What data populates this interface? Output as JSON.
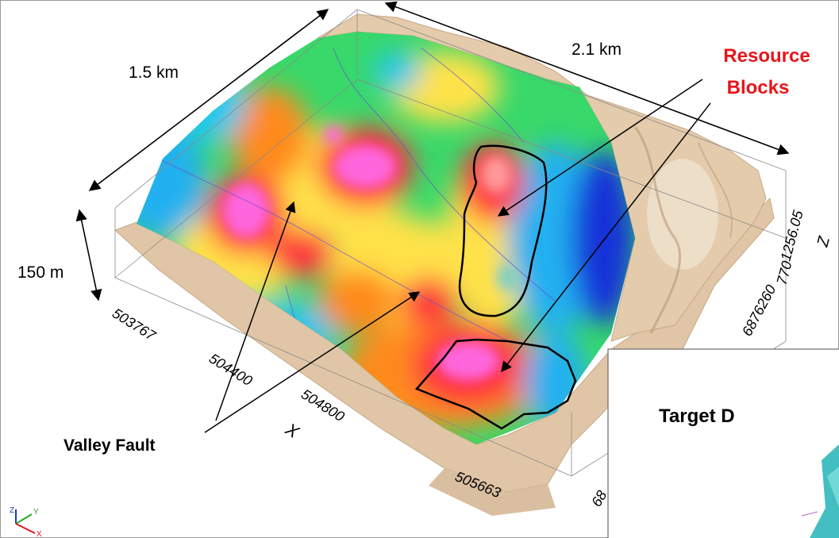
{
  "annotations": {
    "dim_width": "1.5 km",
    "dim_length": "2.1 km",
    "dim_height": "150 m",
    "resource_line1": "Resource",
    "resource_line2": "Blocks",
    "valley_fault": "Valley Fault",
    "target": "Target D"
  },
  "axes": {
    "x_title": "X",
    "z_title": "Z",
    "x_ticks": [
      "503767",
      "504400",
      "504800",
      "505663"
    ],
    "y_ticks": [
      "6876260",
      "68"
    ],
    "z_ticks": [
      "1256.05",
      "770"
    ]
  },
  "triad": {
    "z": "Z",
    "y": "Y",
    "x": "X"
  },
  "colors": {
    "annotation_red": "#e8141a",
    "terrain": "#e2c8a8",
    "outline": "#000000"
  }
}
